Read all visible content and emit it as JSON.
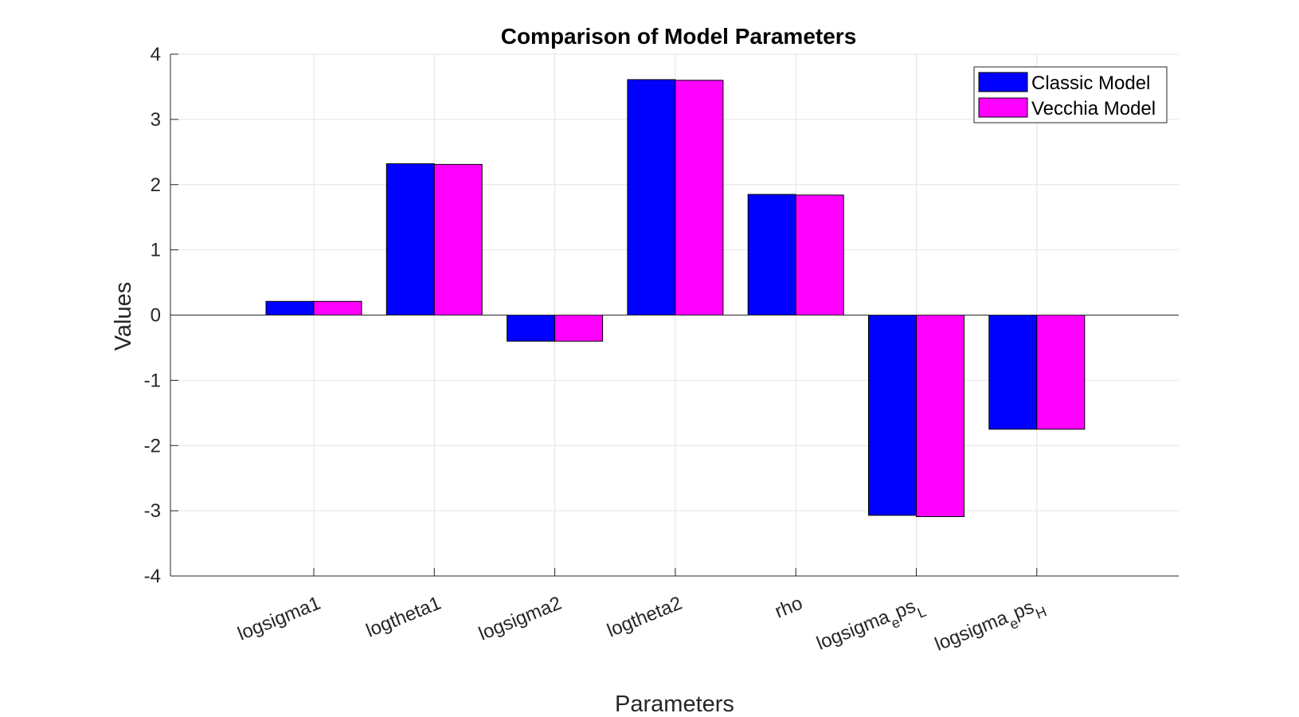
{
  "chart_data": {
    "type": "bar",
    "title": "Comparison of Model Parameters",
    "xlabel": "Parameters",
    "ylabel": "Values",
    "ylim": [
      -4,
      4
    ],
    "yticks": [
      -4,
      -3,
      -2,
      -1,
      0,
      1,
      2,
      3,
      4
    ],
    "grid": true,
    "legend_position": "top-right",
    "categories": [
      {
        "base": "logsigma1"
      },
      {
        "base": "logtheta1"
      },
      {
        "base": "logsigma2"
      },
      {
        "base": "logtheta2"
      },
      {
        "base": "rho"
      },
      {
        "base": "logsigma",
        "sub1": "e",
        "mid": "ps",
        "sub2": "L"
      },
      {
        "base": "logsigma",
        "sub1": "e",
        "mid": "ps",
        "sub2": "H"
      }
    ],
    "series": [
      {
        "name": "Classic Model",
        "color": "#0000ff",
        "values": [
          0.21,
          2.32,
          -0.4,
          3.61,
          1.85,
          -3.07,
          -1.75
        ]
      },
      {
        "name": "Vecchia Model",
        "color": "#ff00ff",
        "values": [
          0.21,
          2.31,
          -0.4,
          3.6,
          1.84,
          -3.09,
          -1.75
        ]
      }
    ]
  }
}
